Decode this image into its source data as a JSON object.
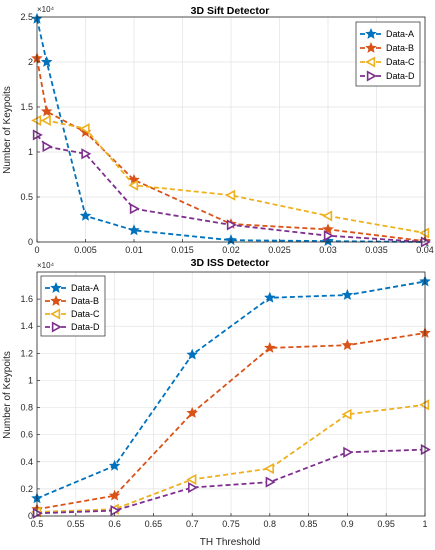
{
  "colors": {
    "Data-A": "#0072BD",
    "Data-B": "#D95319",
    "Data-C": "#EDB120",
    "Data-D": "#7E2F8E"
  },
  "chart_data": [
    {
      "type": "line",
      "title": "3D Sift Detector",
      "xlabel": "",
      "ylabel": "Number of Keypoits",
      "exponent_label": "×10⁴",
      "xlim": [
        0,
        0.04
      ],
      "ylim": [
        0,
        2.5
      ],
      "xticks": [
        "0",
        "0.005",
        "0.01",
        "0.015",
        "0.02",
        "0.025",
        "0.03",
        "0.035",
        "0.04"
      ],
      "xtick_values": [
        0,
        0.005,
        0.01,
        0.015,
        0.02,
        0.025,
        0.03,
        0.035,
        0.04
      ],
      "yticks": [
        "0",
        "0.5",
        "1",
        "1.5",
        "2",
        "2.5"
      ],
      "ytick_values": [
        0,
        0.5,
        1,
        1.5,
        2,
        2.5
      ],
      "grid": true,
      "legend_position": "top-right",
      "series": [
        {
          "name": "Data-A",
          "marker": "star",
          "x": [
            0,
            0.001,
            0.005,
            0.01,
            0.02,
            0.03,
            0.04
          ],
          "y": [
            2.48,
            2.0,
            0.29,
            0.13,
            0.02,
            0.01,
            0.0
          ]
        },
        {
          "name": "Data-B",
          "marker": "star",
          "x": [
            0,
            0.001,
            0.005,
            0.01,
            0.02,
            0.03,
            0.04
          ],
          "y": [
            2.04,
            1.45,
            1.22,
            0.69,
            0.2,
            0.14,
            0.01
          ]
        },
        {
          "name": "Data-C",
          "marker": "triangle-left",
          "x": [
            0,
            0.001,
            0.005,
            0.01,
            0.02,
            0.03,
            0.04
          ],
          "y": [
            1.35,
            1.35,
            1.26,
            0.63,
            0.52,
            0.29,
            0.1
          ]
        },
        {
          "name": "Data-D",
          "marker": "triangle-right",
          "x": [
            0,
            0.001,
            0.005,
            0.01,
            0.02,
            0.03,
            0.04
          ],
          "y": [
            1.19,
            1.06,
            0.98,
            0.37,
            0.19,
            0.07,
            0.0
          ]
        }
      ]
    },
    {
      "type": "line",
      "title": "3D ISS Detector",
      "xlabel": "TH Threshold",
      "ylabel": "Number of Keypoits",
      "exponent_label": "×10⁴",
      "xlim": [
        0.5,
        1.0
      ],
      "ylim": [
        0,
        1.8
      ],
      "xticks": [
        "0.5",
        "0.55",
        "0.6",
        "0.65",
        "0.7",
        "0.75",
        "0.8",
        "0.85",
        "0.9",
        "0.95",
        "1"
      ],
      "xtick_values": [
        0.5,
        0.55,
        0.6,
        0.65,
        0.7,
        0.75,
        0.8,
        0.85,
        0.9,
        0.95,
        1.0
      ],
      "yticks": [
        "0",
        "0.2",
        "0.4",
        "0.6",
        "0.8",
        "1",
        "1.2",
        "1.4",
        "1.6"
      ],
      "ytick_values": [
        0,
        0.2,
        0.4,
        0.6,
        0.8,
        1.0,
        1.2,
        1.4,
        1.6
      ],
      "grid": true,
      "legend_position": "top-left",
      "series": [
        {
          "name": "Data-A",
          "marker": "star",
          "x": [
            0.5,
            0.6,
            0.7,
            0.8,
            0.9,
            1.0
          ],
          "y": [
            0.13,
            0.37,
            1.19,
            1.61,
            1.63,
            1.73
          ]
        },
        {
          "name": "Data-B",
          "marker": "star",
          "x": [
            0.5,
            0.6,
            0.7,
            0.8,
            0.9,
            1.0
          ],
          "y": [
            0.05,
            0.15,
            0.76,
            1.24,
            1.26,
            1.35
          ]
        },
        {
          "name": "Data-C",
          "marker": "triangle-left",
          "x": [
            0.5,
            0.6,
            0.7,
            0.8,
            0.9,
            1.0
          ],
          "y": [
            0.03,
            0.05,
            0.27,
            0.35,
            0.75,
            0.82
          ]
        },
        {
          "name": "Data-D",
          "marker": "triangle-right",
          "x": [
            0.5,
            0.6,
            0.7,
            0.8,
            0.9,
            1.0
          ],
          "y": [
            0.02,
            0.04,
            0.21,
            0.25,
            0.47,
            0.49
          ]
        }
      ]
    }
  ]
}
